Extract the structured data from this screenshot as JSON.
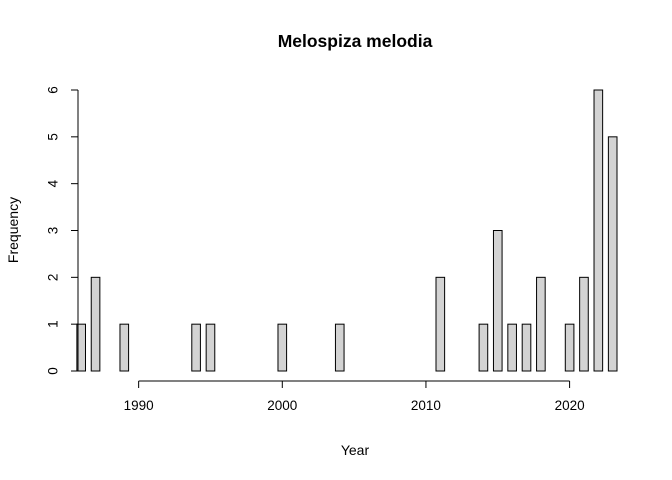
{
  "colors": {
    "bar_fill": "#d3d3d3",
    "bar_stroke": "#000000",
    "background": "#ffffff"
  },
  "chart_data": {
    "type": "bar",
    "title": "Melospiza melodia",
    "xlabel": "Year",
    "ylabel": "Frequency",
    "xlim": [
      1985.5,
      2023.3
    ],
    "ylim": [
      0,
      6
    ],
    "bin_width": 0.6,
    "x_ticks": [
      "1990",
      "2000",
      "2010",
      "2020"
    ],
    "x_tick_values": [
      1990,
      2000,
      2010,
      2020
    ],
    "y_ticks": [
      "0",
      "1",
      "2",
      "3",
      "4",
      "5",
      "6"
    ],
    "y_tick_values": [
      0,
      1,
      2,
      3,
      4,
      5,
      6
    ],
    "bins": [
      {
        "x": 1986,
        "value": 1
      },
      {
        "x": 1987,
        "value": 2
      },
      {
        "x": 1988,
        "value": 0
      },
      {
        "x": 1989,
        "value": 1
      },
      {
        "x": 1990,
        "value": 0
      },
      {
        "x": 1991,
        "value": 0
      },
      {
        "x": 1992,
        "value": 0
      },
      {
        "x": 1993,
        "value": 0
      },
      {
        "x": 1994,
        "value": 1
      },
      {
        "x": 1995,
        "value": 1
      },
      {
        "x": 1996,
        "value": 0
      },
      {
        "x": 1997,
        "value": 0
      },
      {
        "x": 1998,
        "value": 0
      },
      {
        "x": 1999,
        "value": 0
      },
      {
        "x": 2000,
        "value": 1
      },
      {
        "x": 2001,
        "value": 0
      },
      {
        "x": 2002,
        "value": 0
      },
      {
        "x": 2003,
        "value": 0
      },
      {
        "x": 2004,
        "value": 1
      },
      {
        "x": 2005,
        "value": 0
      },
      {
        "x": 2006,
        "value": 0
      },
      {
        "x": 2007,
        "value": 0
      },
      {
        "x": 2008,
        "value": 0
      },
      {
        "x": 2009,
        "value": 0
      },
      {
        "x": 2010,
        "value": 0
      },
      {
        "x": 2011,
        "value": 2
      },
      {
        "x": 2012,
        "value": 0
      },
      {
        "x": 2013,
        "value": 0
      },
      {
        "x": 2014,
        "value": 1
      },
      {
        "x": 2015,
        "value": 3
      },
      {
        "x": 2016,
        "value": 1
      },
      {
        "x": 2017,
        "value": 1
      },
      {
        "x": 2018,
        "value": 2
      },
      {
        "x": 2019,
        "value": 0
      },
      {
        "x": 2020,
        "value": 1
      },
      {
        "x": 2021,
        "value": 2
      },
      {
        "x": 2022,
        "value": 6
      },
      {
        "x": 2023,
        "value": 5
      }
    ]
  }
}
